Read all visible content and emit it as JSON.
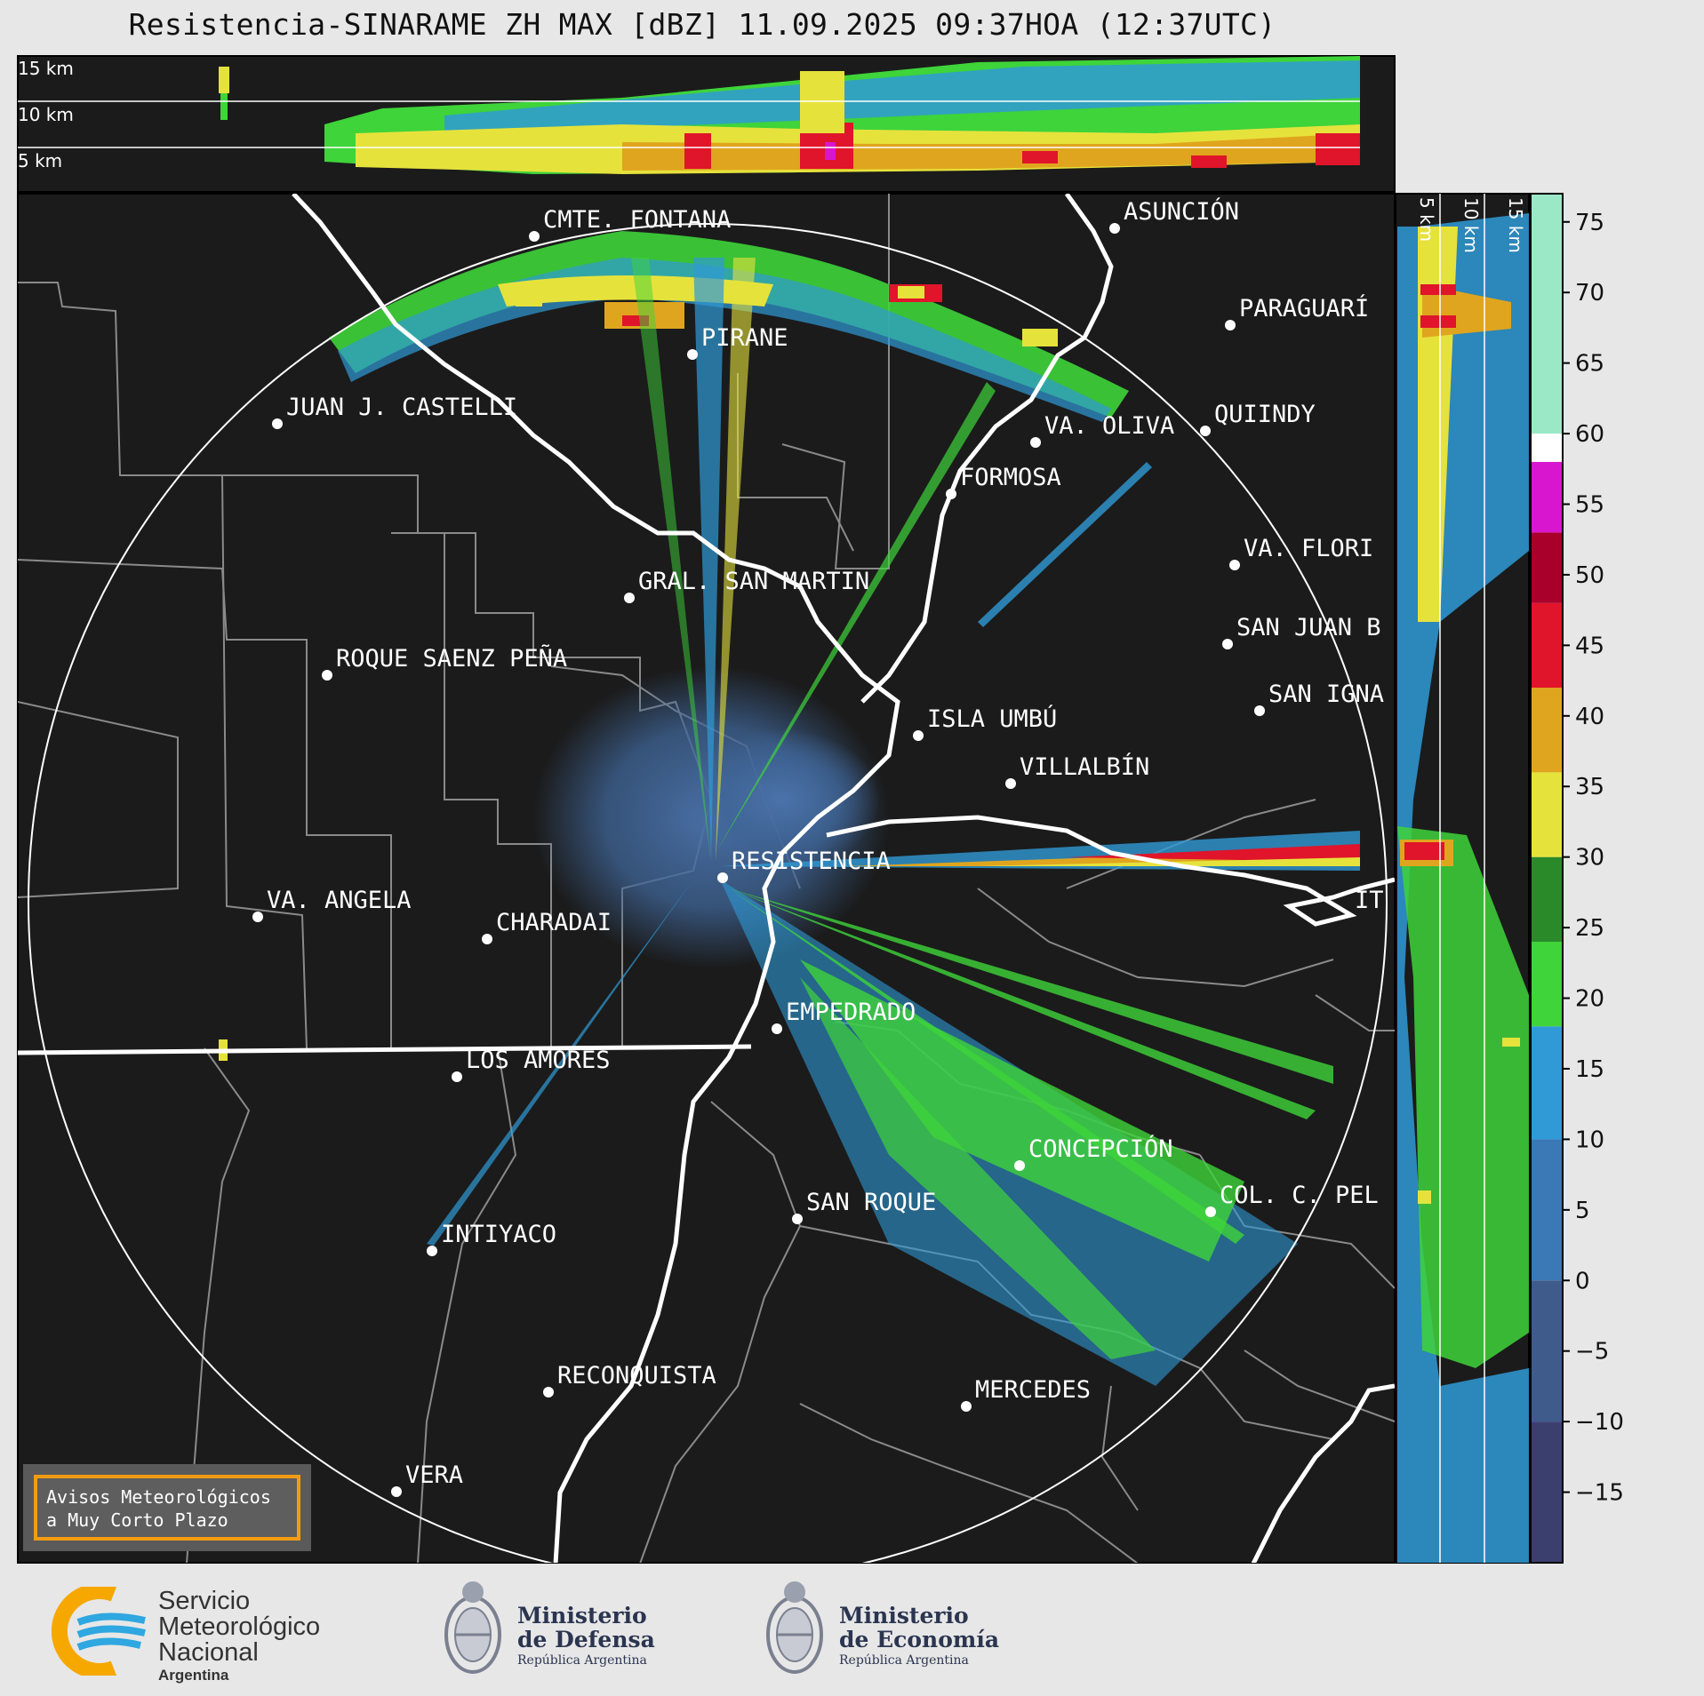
{
  "title": "Resistencia-SINARAME ZH MAX [dBZ] 11.09.2025 09:37HOA (12:37UTC)",
  "altitude_labels_top": [
    "15 km",
    "10 km",
    "5 km"
  ],
  "altitude_labels_side": [
    "5 km",
    "10 km",
    "15 km"
  ],
  "colorbar": {
    "unit": "dBZ",
    "ticks": [
      "75",
      "70",
      "65",
      "60",
      "55",
      "50",
      "45",
      "40",
      "35",
      "30",
      "25",
      "20",
      "15",
      "10",
      "5",
      "0",
      "−5",
      "−10",
      "−15"
    ],
    "range": [
      -20,
      77
    ],
    "bands": [
      {
        "from": -20,
        "to": -10,
        "color": "#3b3f6e"
      },
      {
        "from": -10,
        "to": 0,
        "color": "#3e5b8c"
      },
      {
        "from": 0,
        "to": 10,
        "color": "#3a79b5"
      },
      {
        "from": 10,
        "to": 18,
        "color": "#2f9ad6"
      },
      {
        "from": 18,
        "to": 24,
        "color": "#3ed43a"
      },
      {
        "from": 24,
        "to": 30,
        "color": "#2a8a2a"
      },
      {
        "from": 30,
        "to": 36,
        "color": "#e6e23c"
      },
      {
        "from": 36,
        "to": 42,
        "color": "#e0a51e"
      },
      {
        "from": 42,
        "to": 48,
        "color": "#e0142a"
      },
      {
        "from": 48,
        "to": 53,
        "color": "#a8002a"
      },
      {
        "from": 53,
        "to": 58,
        "color": "#d816d0"
      },
      {
        "from": 58,
        "to": 60,
        "color": "#ffffff"
      },
      {
        "from": 60,
        "to": 77,
        "color": "#9be8c6"
      }
    ]
  },
  "places": [
    {
      "name": "CMTE. FONTANA"
    },
    {
      "name": "ASUNCIÓN"
    },
    {
      "name": "PARAGUARÍ"
    },
    {
      "name": "PIRANE"
    },
    {
      "name": "JUAN J. CASTELLI"
    },
    {
      "name": "VA. OLIVA"
    },
    {
      "name": "QUIINDY"
    },
    {
      "name": "FORMOSA"
    },
    {
      "name": "VA. FLORI"
    },
    {
      "name": "GRAL. SAN MARTIN"
    },
    {
      "name": "SAN JUAN B"
    },
    {
      "name": "ROQUE SAENZ PEÑA"
    },
    {
      "name": "SAN IGNA"
    },
    {
      "name": "ISLA UMBÚ"
    },
    {
      "name": "VILLALBÍN"
    },
    {
      "name": "RESISTENCIA"
    },
    {
      "name": "VA. ANGELA"
    },
    {
      "name": "CHARADAI"
    },
    {
      "name": "IT"
    },
    {
      "name": "EMPEDRADO"
    },
    {
      "name": "LOS AMORES"
    },
    {
      "name": "CONCEPCIÓN"
    },
    {
      "name": "SAN ROQUE"
    },
    {
      "name": "COL. C. PEL"
    },
    {
      "name": "INTIYACO"
    },
    {
      "name": "RECONQUISTA"
    },
    {
      "name": "MERCEDES"
    },
    {
      "name": "VERA"
    }
  ],
  "warning_box": {
    "line1": "Avisos Meteorológicos",
    "line2": "a Muy Corto Plazo"
  },
  "logos": {
    "smn": {
      "line1": "Servicio",
      "line2": "Meteorológico",
      "line3": "Nacional",
      "line4": "Argentina"
    },
    "defensa": {
      "line1": "Ministerio",
      "line2": "de Defensa",
      "line3": "República Argentina"
    },
    "economia": {
      "line1": "Ministerio",
      "line2": "de Economía",
      "line3": "República Argentina"
    }
  },
  "colors": {
    "panel_bg": "#1b1b1b",
    "page_bg": "#e7e7e7",
    "border_lines": "#8a8a8a",
    "rivers": "#ffffff"
  }
}
